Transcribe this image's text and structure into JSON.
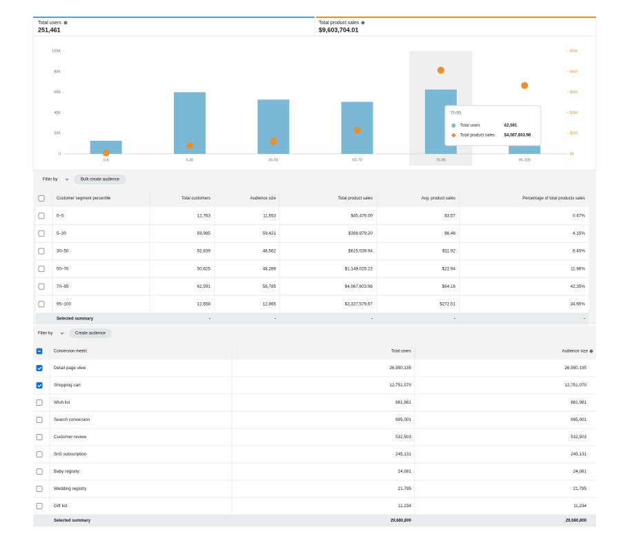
{
  "summary": {
    "tabs": [
      {
        "label": "Total users",
        "value": "251,461"
      },
      {
        "label": "Total product sales",
        "value": "$9,603,704.01"
      }
    ]
  },
  "chart_data": {
    "type": "bar",
    "categories": [
      "0-5",
      "5-30",
      "30-50",
      "50-70",
      "70-95",
      "95-100"
    ],
    "series": [
      {
        "name": "Total users",
        "color": "#7ab8d6",
        "values": [
          12763,
          59985,
          52839,
          50625,
          62591,
          12658
        ]
      },
      {
        "name": "Total product sales",
        "color": "#e8902b",
        "axis": "y2",
        "values": [
          45476.0,
          398979.2,
          615039.94,
          1149025.22,
          4067603.98,
          3327579.67
        ]
      }
    ],
    "ylim": [
      0,
      100000
    ],
    "yticks": [
      0,
      {
        "value": 20000,
        "label": "20K"
      },
      {
        "value": 40000,
        "label": "40K"
      },
      {
        "value": 60000,
        "label": "60K"
      },
      {
        "value": 80000,
        "label": "80K"
      },
      {
        "value": 100000,
        "label": "100K"
      }
    ],
    "y2lim": [
      0,
      5000000
    ],
    "y2ticks": [
      {
        "value": 0,
        "label": "$0"
      },
      {
        "value": 1000000,
        "label": "$1M"
      },
      {
        "value": 2000000,
        "label": "$2M"
      },
      {
        "value": 3000000,
        "label": "$3M"
      },
      {
        "value": 4000000,
        "label": "$4M"
      },
      {
        "value": 5000000,
        "label": "$5M"
      }
    ],
    "tooltip": {
      "category": "70-95",
      "values": [
        "62,591",
        "$4,067,603.98"
      ]
    }
  },
  "table_1": {
    "filter_label": "Filter by",
    "button": "Bulk create audience",
    "columns": [
      "Customer segment percentile",
      "Total customers",
      "Audience size",
      "Total product sales",
      "Avg. product sales",
      "Percentage of total products sales"
    ],
    "rows": [
      [
        "0–5",
        "12,763",
        "11,653",
        "$45,476.00",
        "$3.57",
        "0.47%"
      ],
      [
        "5–30",
        "59,985",
        "59,421",
        "$398,979.20",
        "$6.48",
        "4.15%"
      ],
      [
        "30–50",
        "52,839",
        "48,562",
        "$615,039.94",
        "$11.92",
        "6.40%"
      ],
      [
        "50–70",
        "50,625",
        "48,289",
        "$1,149,025.22",
        "$22.94",
        "11.96%"
      ],
      [
        "70–95",
        "62,591",
        "58,785",
        "$4,067,603.98",
        "$64.16",
        "42.35%"
      ],
      [
        "95–100",
        "12,658",
        "12,865",
        "$3,327,579.67",
        "$272.51",
        "34.65%"
      ]
    ],
    "summary": [
      "Selected summary",
      "-",
      "-",
      "-",
      "-",
      "-"
    ]
  },
  "table_2": {
    "filter_label": "Filter by",
    "button": "Create audience",
    "columns": [
      "Conversion metric",
      "Total users",
      "Audience size"
    ],
    "rows": [
      [
        "Detail page view",
        "26,990,135",
        "26,990,135"
      ],
      [
        "Shopping cart",
        "12,751,070",
        "12,751,070"
      ],
      [
        "Wish list",
        "881,981",
        "881,981"
      ],
      [
        "Search conversion",
        "695,001",
        "695,001"
      ],
      [
        "Customer review",
        "532,503",
        "532,503"
      ],
      [
        "SnS subscription",
        "245,131",
        "245,131"
      ],
      [
        "Baby registry",
        "24,081",
        "24,081"
      ],
      [
        "Wedding registry",
        "21,795",
        "21,795"
      ],
      [
        "Gift list",
        "11,234",
        "11,234"
      ]
    ],
    "checked": [
      true,
      true,
      false,
      false,
      false,
      false,
      false,
      false,
      false
    ],
    "summary": [
      "Selected summary",
      "29,680,800",
      "29,680,800"
    ]
  }
}
